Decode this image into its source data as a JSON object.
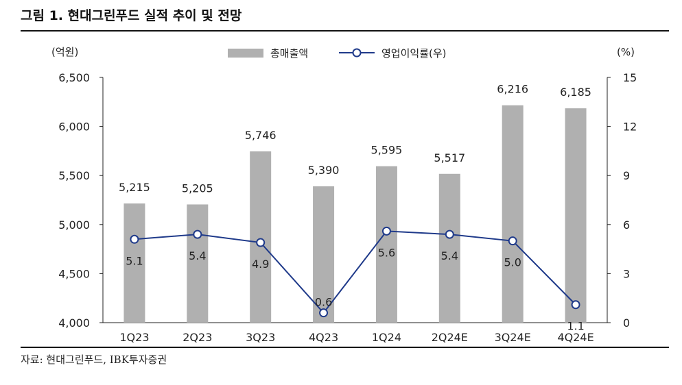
{
  "figure_title": "그림 1. 현대그린푸드 실적 추이 및 전망",
  "source_text": "자료: 현대그린푸드, IBK투자증권",
  "colors": {
    "bar": "#b0b0b0",
    "line": "#1f3a8a",
    "marker_fill": "#ffffff",
    "axis": "#222222",
    "rule": "#111111"
  },
  "chart_data": {
    "type": "bar",
    "title": "",
    "categories": [
      "1Q23",
      "2Q23",
      "3Q23",
      "4Q23",
      "1Q24",
      "2Q24E",
      "3Q24E",
      "4Q24E"
    ],
    "left_axis": {
      "unit_label": "(억원)",
      "ylim": [
        4000,
        6500
      ],
      "ticks": [
        "4,000",
        "4,500",
        "5,000",
        "5,500",
        "6,000",
        "6,500"
      ]
    },
    "right_axis": {
      "unit_label": "(%)",
      "ylim": [
        0,
        15
      ],
      "ticks": [
        "0",
        "3",
        "6",
        "9",
        "12",
        "15"
      ]
    },
    "series": [
      {
        "name": "총매출액",
        "type": "bar",
        "axis": "left",
        "values": [
          5215,
          5205,
          5746,
          5390,
          5595,
          5517,
          6216,
          6185
        ],
        "labels": [
          "5,215",
          "5,205",
          "5,746",
          "5,390",
          "5,595",
          "5,517",
          "6,216",
          "6,185"
        ]
      },
      {
        "name": "영업이익률(우)",
        "type": "line",
        "axis": "right",
        "values": [
          5.1,
          5.4,
          4.9,
          0.6,
          5.6,
          5.4,
          5.0,
          1.1
        ],
        "labels": [
          "5.1",
          "5.4",
          "4.9",
          "0.6",
          "5.6",
          "5.4",
          "5.0",
          "1.1"
        ]
      }
    ],
    "legend": "top-center",
    "grid": false
  }
}
